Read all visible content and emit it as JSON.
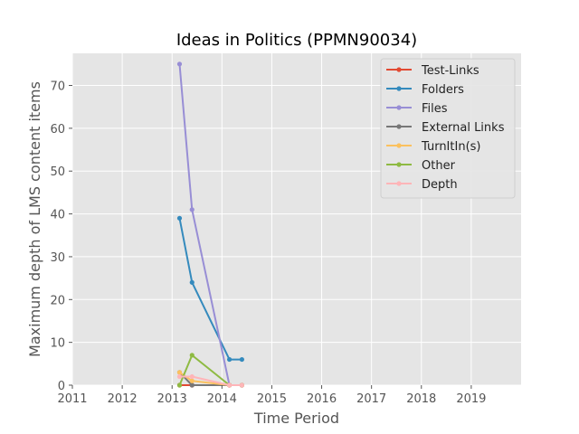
{
  "chart_data": {
    "type": "line",
    "title": "Ideas in Politics (PPMN90034)",
    "xlabel": "Time Period",
    "ylabel": "Maximum depth of LMS content items",
    "xlim": [
      2011,
      2020
    ],
    "ylim": [
      0,
      77.5
    ],
    "xticks": [
      "2011",
      "2012",
      "2013",
      "2014",
      "2015",
      "2016",
      "2017",
      "2018",
      "2019"
    ],
    "yticks": [
      "0",
      "10",
      "20",
      "30",
      "40",
      "50",
      "60",
      "70"
    ],
    "grid": true,
    "legend_position": "upper right",
    "series": [
      {
        "name": "Test-Links",
        "color": "#E24A33",
        "x": [
          2013.15,
          2013.4,
          2014.15,
          2014.4
        ],
        "y": [
          0,
          0,
          0,
          0
        ]
      },
      {
        "name": "Folders",
        "color": "#348ABD",
        "x": [
          2013.15,
          2013.4,
          2014.15,
          2014.4
        ],
        "y": [
          39,
          24,
          6,
          6
        ]
      },
      {
        "name": "Files",
        "color": "#988ED5",
        "x": [
          2013.15,
          2013.4,
          2014.15,
          2014.4
        ],
        "y": [
          75,
          41,
          0,
          0
        ]
      },
      {
        "name": "External Links",
        "color": "#777777",
        "x": [
          2013.15,
          2013.4,
          2014.15,
          2014.4
        ],
        "y": [
          3,
          0,
          0,
          0
        ]
      },
      {
        "name": "TurnItIn(s)",
        "color": "#FBC15E",
        "x": [
          2013.15,
          2013.4,
          2014.15,
          2014.4
        ],
        "y": [
          3,
          1,
          0,
          0
        ]
      },
      {
        "name": "Other",
        "color": "#8EBA42",
        "x": [
          2013.15,
          2013.4,
          2014.15,
          2014.4
        ],
        "y": [
          0,
          7,
          0,
          0
        ]
      },
      {
        "name": "Depth",
        "color": "#FFB5B8",
        "x": [
          2013.15,
          2013.4,
          2014.15,
          2014.4
        ],
        "y": [
          2,
          2,
          0,
          0
        ]
      }
    ]
  }
}
